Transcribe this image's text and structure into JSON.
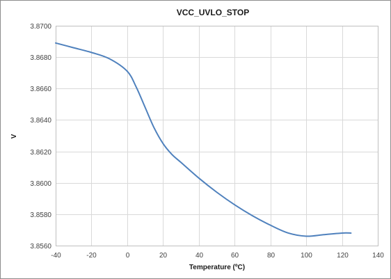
{
  "chart_data": {
    "type": "line",
    "title": "VCC_UVLO_STOP",
    "xlabel": "Temperature (ºC)",
    "ylabel": "V",
    "xlim": [
      -40,
      140
    ],
    "ylim": [
      3.856,
      3.87
    ],
    "x_ticks": [
      -40,
      -20,
      0,
      20,
      40,
      60,
      80,
      100,
      120,
      140
    ],
    "y_ticks": [
      3.856,
      3.858,
      3.86,
      3.862,
      3.864,
      3.866,
      3.868,
      3.87
    ],
    "y_tick_labels": [
      "3.8560",
      "3.8580",
      "3.8600",
      "3.8620",
      "3.8640",
      "3.8660",
      "3.8680",
      "3.8700"
    ],
    "grid": true,
    "legend": "none",
    "series": [
      {
        "color": "#4f81bd",
        "x": [
          -40,
          -30,
          -20,
          -10,
          0,
          5,
          10,
          15,
          20,
          25,
          30,
          40,
          50,
          60,
          70,
          80,
          90,
          100,
          110,
          120,
          125
        ],
        "y": [
          3.8689,
          3.8686,
          3.8683,
          3.8679,
          3.8671,
          3.8661,
          3.8648,
          3.8635,
          3.8625,
          3.8618,
          3.8613,
          3.8603,
          3.8594,
          3.8586,
          3.8579,
          3.8573,
          3.8568,
          3.8566,
          3.8567,
          3.8568,
          3.8568
        ]
      }
    ]
  }
}
